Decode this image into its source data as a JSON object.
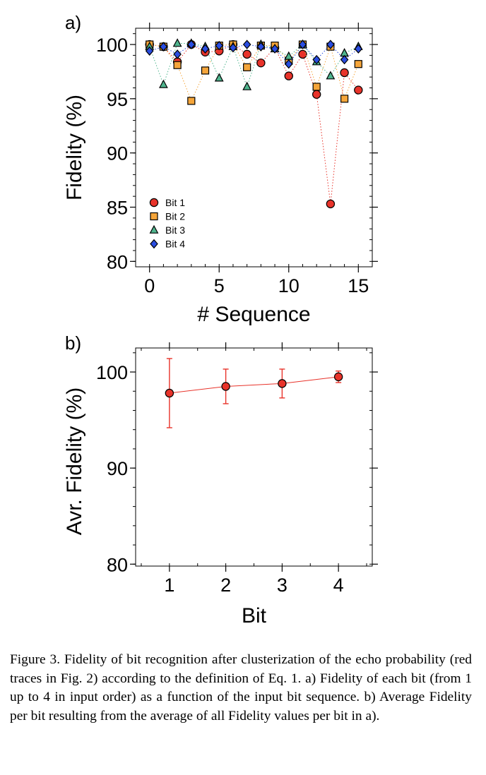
{
  "panel_a_label": "a)",
  "panel_b_label": "b)",
  "caption": "Figure 3.  Fidelity of bit recognition after clusterization of the echo probability (red traces in Fig. 2) according to the definition of Eq. 1. a) Fidelity of each bit (from 1 up to 4 in input order) as a function of the input bit sequence. b) Average Fidelity per bit resulting from the average of all Fidelity values per bit in a).",
  "chart_data": [
    {
      "type": "scatter",
      "xlabel": "# Sequence",
      "ylabel": "Fidelity (%)",
      "xlim": [
        -1,
        16
      ],
      "ylim": [
        79.5,
        101.5
      ],
      "xticks": [
        0,
        5,
        10,
        15
      ],
      "yticks": [
        80,
        85,
        90,
        95,
        100
      ],
      "legend_position": "bottom-left",
      "x": [
        0,
        1,
        2,
        3,
        4,
        5,
        6,
        7,
        8,
        9,
        10,
        11,
        12,
        13,
        14,
        15
      ],
      "series": [
        {
          "name": "Bit 1",
          "marker": "circle",
          "color": "#e8332a",
          "values": [
            100.0,
            99.8,
            98.4,
            100.0,
            99.3,
            99.4,
            100.0,
            99.1,
            98.3,
            99.7,
            97.1,
            99.1,
            95.4,
            85.3,
            97.4,
            95.8
          ]
        },
        {
          "name": "Bit 2",
          "marker": "square",
          "color": "#f5a53a",
          "values": [
            100.0,
            99.8,
            98.1,
            94.8,
            97.6,
            99.9,
            100.0,
            97.9,
            99.9,
            99.9,
            98.5,
            100.0,
            96.1,
            99.8,
            95.0,
            98.2
          ]
        },
        {
          "name": "Bit 3",
          "marker": "triangle",
          "color": "#4fb58e",
          "values": [
            99.8,
            96.3,
            100.1,
            100.1,
            99.8,
            96.9,
            99.8,
            96.1,
            100.0,
            99.6,
            98.9,
            100.0,
            98.4,
            97.1,
            99.2,
            99.8
          ]
        },
        {
          "name": "Bit 4",
          "marker": "diamond",
          "color": "#2a4de0",
          "values": [
            99.4,
            99.8,
            99.1,
            100.0,
            99.6,
            99.9,
            99.7,
            100.0,
            99.8,
            99.6,
            98.2,
            100.0,
            98.6,
            100.0,
            98.6,
            99.6
          ]
        }
      ]
    },
    {
      "type": "line",
      "xlabel": "Bit",
      "ylabel": "Avr. Fidelity (%)",
      "xlim": [
        0.4,
        4.6
      ],
      "ylim": [
        79.8,
        102.5
      ],
      "xticks": [
        1,
        2,
        3,
        4
      ],
      "yticks": [
        80,
        90,
        100
      ],
      "error_bars": true,
      "series": [
        {
          "color": "#e8332a",
          "x": [
            1,
            2,
            3,
            4
          ],
          "values": [
            97.8,
            98.5,
            98.8,
            99.5
          ],
          "errors": [
            3.6,
            1.8,
            1.5,
            0.6
          ]
        }
      ]
    }
  ]
}
